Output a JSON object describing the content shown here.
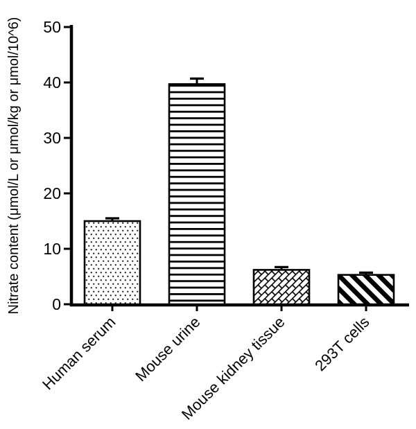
{
  "figure": {
    "background_color": "#ffffff",
    "ink_color": "#000000"
  },
  "chart_data": {
    "type": "bar",
    "title": "",
    "xlabel": "",
    "ylabel": "Nitrate content (μmol/L or μmol/kg or μmol/10^6)",
    "ylim": [
      0,
      50
    ],
    "yticks": [
      0,
      10,
      20,
      30,
      40,
      50
    ],
    "grid": false,
    "legend": "none",
    "categories": [
      "Human serum",
      "Mouse urine",
      "Mouse kidney tissue",
      "293T cells"
    ],
    "values": [
      15.0,
      39.7,
      6.2,
      5.3
    ],
    "errors_plus": [
      0.5,
      1.0,
      0.5,
      0.4
    ],
    "bar_patterns": [
      "dots",
      "horizontal-lines",
      "diagonal-bricks",
      "diagonal-stripes"
    ],
    "bar_fill_color": "#ffffff",
    "bar_outline_color": "#000000",
    "error_bar_color": "#000000",
    "x_label_rotation_deg": -45
  }
}
